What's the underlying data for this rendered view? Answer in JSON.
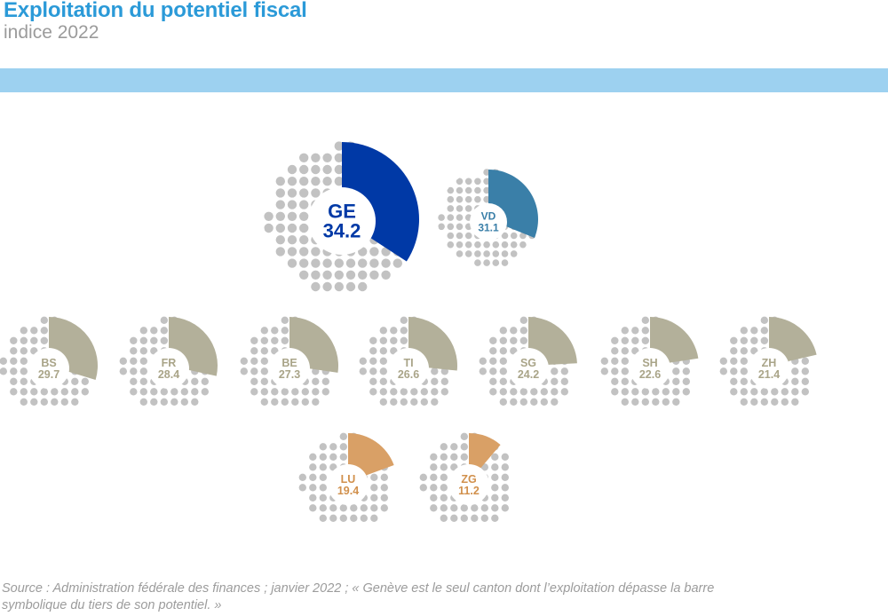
{
  "header": {
    "title": "Exploitation du potentiel fiscal",
    "subtitle": "indice 2022"
  },
  "source": {
    "line1": "Source : Administration fédérale des finances ; janvier 2022 ; « Genève est le seul canton dont l’exploitation dépasse la barre",
    "line2": "symbolique du tiers de son potentiel. »"
  },
  "colors": {
    "band": "#9dd1f0",
    "title": "#2b9ad8",
    "dots": "#c2c2c2",
    "GE": "#0039a6",
    "VD": "#3a7fa8",
    "group_gray": "#b3b09a",
    "group_orange": "#d9a066"
  },
  "chart_data": {
    "type": "pie",
    "title": "Exploitation du potentiel fiscal",
    "subtitle": "indice 2022",
    "unit": "indice",
    "max": 100,
    "rows": [
      [
        "GE",
        "VD"
      ],
      [
        "BS",
        "FR",
        "BE",
        "TI",
        "SG",
        "SH",
        "ZH"
      ],
      [
        "LU",
        "ZG"
      ]
    ],
    "series": [
      {
        "canton": "GE",
        "value": 34.2,
        "color": "#0039a6",
        "label_color": "#0039a6"
      },
      {
        "canton": "VD",
        "value": 31.1,
        "color": "#3a7fa8",
        "label_color": "#3a7fa8"
      },
      {
        "canton": "BS",
        "value": 29.7,
        "color": "#b3b09a",
        "label_color": "#a9a488"
      },
      {
        "canton": "FR",
        "value": 28.4,
        "color": "#b3b09a",
        "label_color": "#a9a488"
      },
      {
        "canton": "BE",
        "value": 27.3,
        "color": "#b3b09a",
        "label_color": "#a9a488"
      },
      {
        "canton": "TI",
        "value": 26.6,
        "color": "#b3b09a",
        "label_color": "#a9a488"
      },
      {
        "canton": "SG",
        "value": 24.2,
        "color": "#b3b09a",
        "label_color": "#a9a488"
      },
      {
        "canton": "SH",
        "value": 22.6,
        "color": "#b3b09a",
        "label_color": "#a9a488"
      },
      {
        "canton": "ZH",
        "value": 21.4,
        "color": "#b3b09a",
        "label_color": "#a9a488"
      },
      {
        "canton": "LU",
        "value": 19.4,
        "color": "#d9a066",
        "label_color": "#d1904c"
      },
      {
        "canton": "ZG",
        "value": 11.2,
        "color": "#d9a066",
        "label_color": "#d1904c"
      }
    ]
  }
}
